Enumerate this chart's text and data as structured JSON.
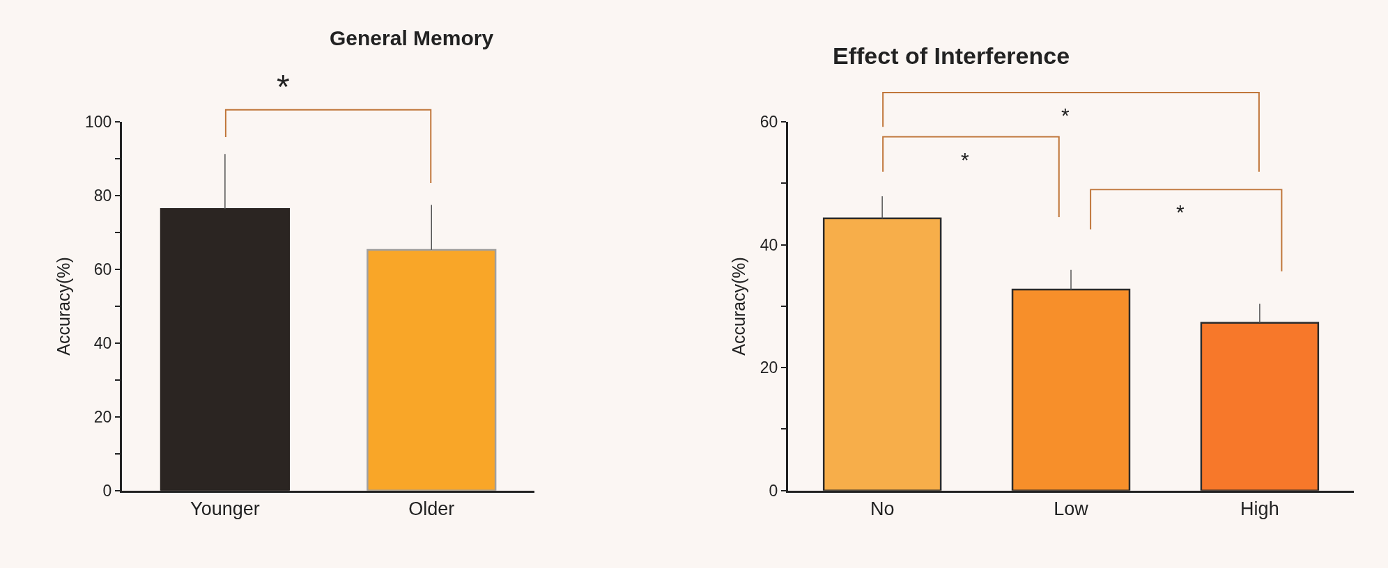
{
  "chart_data": [
    {
      "type": "bar",
      "title": "General Memory",
      "ylabel": "Accuracy(%)",
      "categories": [
        "Younger",
        "Older"
      ],
      "values": [
        76.4,
        65.3
      ],
      "colors": [
        "#2b2522",
        "#f9a628"
      ],
      "errors": [
        [
          76.4,
          91.3
        ],
        [
          65.3,
          77.5
        ]
      ],
      "ylim": [
        0,
        100
      ],
      "yticks": [
        0,
        {
          "value": 10,
          "label": null
        },
        20,
        {
          "value": 30,
          "label": null
        },
        40,
        {
          "value": 50,
          "label": null
        },
        60,
        {
          "value": 70,
          "label": null
        },
        80,
        {
          "value": 90,
          "label": null
        },
        100
      ],
      "annotations": [
        "*"
      ]
    },
    {
      "type": "bar",
      "title": "Effect of Interference",
      "ylabel": "Accuracy(%)",
      "categories": [
        "No",
        "Low",
        "High"
      ],
      "values": [
        44.3,
        32.7,
        27.3
      ],
      "colors": [
        "#f7ae4a",
        "#f78f2a",
        "#f7782a"
      ],
      "errors": [
        [
          44.3,
          47.9
        ],
        [
          32.7,
          35.9
        ],
        [
          27.3,
          30.4
        ]
      ],
      "ylim": [
        0,
        60
      ],
      "yticks": [
        0,
        {
          "value": 10,
          "label": null
        },
        20,
        {
          "value": 30,
          "label": null
        },
        40,
        {
          "value": 50,
          "label": null
        },
        60
      ],
      "annotations": [
        "*",
        "*",
        "*"
      ]
    }
  ]
}
